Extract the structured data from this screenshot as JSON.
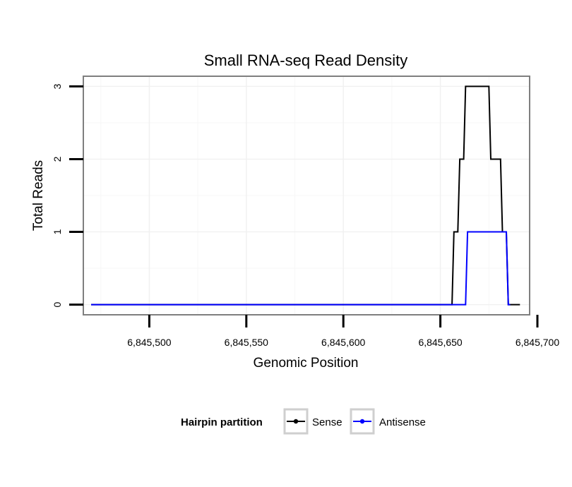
{
  "chart_data": {
    "type": "line",
    "title": "Small RNA-seq Read Density",
    "xlabel": "Genomic Position",
    "ylabel": "Total Reads",
    "xlim": [
      6845466,
      6845696
    ],
    "ylim": [
      -0.14,
      3.14
    ],
    "x_ticks": [
      {
        "value": 6845500,
        "label": "6,845,500"
      },
      {
        "value": 6845550,
        "label": "6,845,550"
      },
      {
        "value": 6845600,
        "label": "6,845,600"
      },
      {
        "value": 6845650,
        "label": "6,845,650"
      },
      {
        "value": 6845700,
        "label": "6,845,700"
      }
    ],
    "y_ticks": [
      {
        "value": 0,
        "label": "0"
      },
      {
        "value": 1,
        "label": "1"
      },
      {
        "value": 2,
        "label": "2"
      },
      {
        "value": 3,
        "label": "3"
      }
    ],
    "grid": true,
    "legend": {
      "title": "Hairpin partition",
      "position": "bottom"
    },
    "series": [
      {
        "name": "Sense",
        "color": "#000000",
        "x": [
          6845470,
          6845656,
          6845657,
          6845659,
          6845660,
          6845662,
          6845663,
          6845675,
          6845676,
          6845681,
          6845682,
          6845684,
          6845685,
          6845691
        ],
        "y": [
          0,
          0,
          1,
          1,
          2,
          2,
          3,
          3,
          2,
          2,
          1,
          1,
          0,
          0
        ]
      },
      {
        "name": "Antisense",
        "color": "#0000ff",
        "x": [
          6845470,
          6845663,
          6845664,
          6845684,
          6845685,
          6845686
        ],
        "y": [
          0,
          0,
          1,
          1,
          0,
          0
        ]
      }
    ]
  }
}
